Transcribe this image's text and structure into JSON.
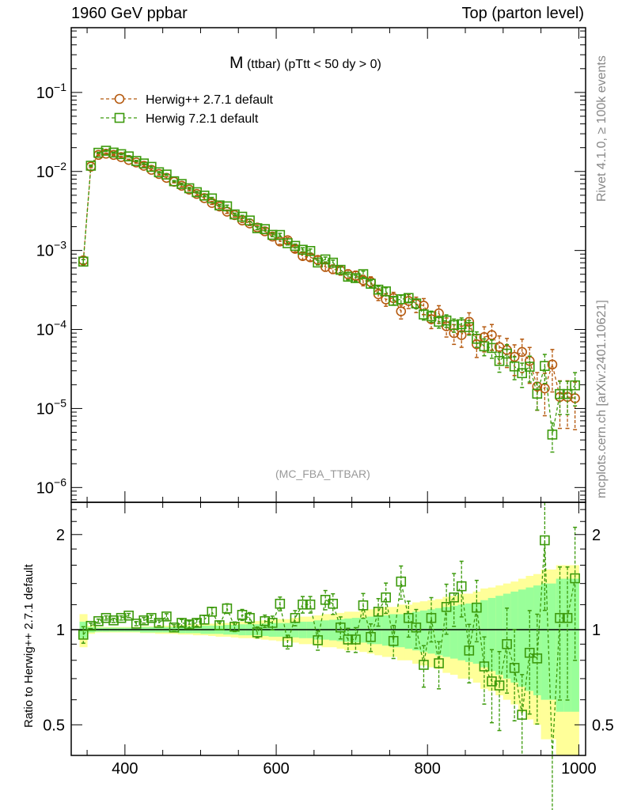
{
  "header": {
    "left": "1960 GeV ppbar",
    "right": "Top (parton level)"
  },
  "side": {
    "rivet": "Rivet 4.1.0, ≥ 100k events",
    "mcplots": "mcplots.cern.ch [arXiv:2401.10621]"
  },
  "chart_data": {
    "type": "line",
    "title_main": "M",
    "title_rest": "(ttbar) (pTtt < 50 dy > 0)",
    "analysis": "(MC_FBA_TTBAR)",
    "xlabel": "",
    "ylabel_ratio": "Ratio to Herwig++ 2.7.1 default",
    "xlim": [
      329,
      1009
    ],
    "ylim": [
      6.5e-07,
      0.66
    ],
    "yscale": "log",
    "ratio_ylim": [
      0.4,
      2.53
    ],
    "ratio_yscale": "log",
    "x_ticks": [
      400,
      600,
      800,
      1000
    ],
    "y_ticks": [
      {
        "v": 0.1,
        "base": "10",
        "exp": "−1"
      },
      {
        "v": 0.01,
        "base": "10",
        "exp": "−2"
      },
      {
        "v": 0.001,
        "base": "10",
        "exp": "−3"
      },
      {
        "v": 0.0001,
        "base": "10",
        "exp": "−4"
      },
      {
        "v": 1e-05,
        "base": "10",
        "exp": "−5"
      },
      {
        "v": 1e-06,
        "base": "10",
        "exp": "−6"
      }
    ],
    "ratio_ticks": [
      {
        "v": 0.5,
        "label": "0.5"
      },
      {
        "v": 1,
        "label": "1"
      },
      {
        "v": 2,
        "label": "2"
      }
    ],
    "legend": {
      "position": "top-left"
    },
    "colors": {
      "herwigpp": "#b5590e",
      "herwig7": "#3c9a0c",
      "band_outer": "#ffff99",
      "band_inner": "#99ff99"
    },
    "x": [
      345,
      355,
      365,
      375,
      385,
      395,
      405,
      415,
      425,
      435,
      445,
      455,
      465,
      475,
      485,
      495,
      505,
      515,
      525,
      535,
      545,
      555,
      565,
      575,
      585,
      595,
      605,
      615,
      625,
      635,
      645,
      655,
      665,
      675,
      685,
      695,
      705,
      715,
      725,
      735,
      745,
      755,
      765,
      775,
      785,
      795,
      805,
      815,
      825,
      835,
      845,
      855,
      865,
      875,
      885,
      895,
      905,
      915,
      925,
      935,
      945,
      955,
      965,
      975,
      985,
      995
    ],
    "series": [
      {
        "name": "Herwig++ 2.7.1 default",
        "values": [
          0.00075,
          0.0115,
          0.0162,
          0.0168,
          0.0162,
          0.0152,
          0.014,
          0.013,
          0.0118,
          0.0105,
          0.0093,
          0.0083,
          0.0074,
          0.0066,
          0.0059,
          0.0052,
          0.0046,
          0.004,
          0.0036,
          0.0031,
          0.0028,
          0.0024,
          0.0022,
          0.00195,
          0.00175,
          0.0015,
          0.0013,
          0.00135,
          0.00105,
          0.00085,
          0.00082,
          0.00076,
          0.00062,
          0.00058,
          0.00056,
          0.0005,
          0.00048,
          0.00042,
          0.0004,
          0.00028,
          0.00024,
          0.00025,
          0.00017,
          0.00023,
          0.00021,
          0.0002,
          0.000135,
          0.00016,
          0.00011,
          9e-05,
          8.5e-05,
          0.000125,
          6.5e-05,
          8e-05,
          8.5e-05,
          6e-05,
          5.5e-05,
          4.5e-05,
          5.2e-05,
          4e-05,
          1.9e-05,
          1.8e-05,
          3.6e-05,
          1.4e-05,
          1.4e-05,
          1.35e-05
        ],
        "rel_err": [
          0.12,
          0.03,
          0.02,
          0.02,
          0.02,
          0.02,
          0.02,
          0.02,
          0.025,
          0.025,
          0.03,
          0.03,
          0.03,
          0.035,
          0.035,
          0.04,
          0.04,
          0.045,
          0.05,
          0.05,
          0.055,
          0.06,
          0.06,
          0.065,
          0.07,
          0.075,
          0.08,
          0.08,
          0.09,
          0.1,
          0.1,
          0.11,
          0.12,
          0.12,
          0.13,
          0.14,
          0.14,
          0.15,
          0.16,
          0.17,
          0.18,
          0.18,
          0.2,
          0.2,
          0.22,
          0.23,
          0.24,
          0.25,
          0.27,
          0.28,
          0.3,
          0.3,
          0.32,
          0.35,
          0.36,
          0.38,
          0.4,
          0.42,
          0.45,
          0.48,
          0.5,
          0.55,
          0.55,
          0.6,
          0.6,
          0.6
        ]
      },
      {
        "name": "Herwig 7.2.1 default",
        "ratio": [
          0.964,
          1.028,
          1.064,
          1.089,
          1.07,
          1.089,
          1.108,
          1.045,
          1.07,
          1.089,
          1.051,
          1.101,
          1.016,
          1.051,
          1.039,
          1.051,
          1.076,
          1.14,
          1.033,
          1.167,
          1.022,
          1.114,
          1.089,
          0.981,
          1.064,
          1.051,
          1.208,
          0.915,
          1.089,
          1.201,
          1.201,
          0.926,
          1.243,
          1.208,
          1.016,
          0.931,
          0.931,
          1.194,
          0.948,
          1.14,
          1.265,
          0.921,
          1.42,
          1.089,
          1.016,
          0.774,
          1.089,
          0.783,
          1.18,
          1.265,
          1.372,
          0.859,
          1.174,
          0.765,
          0.686,
          0.666,
          0.9,
          0.757,
          0.538,
          0.845,
          0.811,
          1.918,
          0.13,
          1.089,
          1.089,
          1.454
        ],
        "rel_err": [
          0.06,
          0.02,
          0.015,
          0.015,
          0.015,
          0.015,
          0.015,
          0.015,
          0.02,
          0.02,
          0.02,
          0.02,
          0.02,
          0.025,
          0.025,
          0.025,
          0.03,
          0.03,
          0.03,
          0.035,
          0.035,
          0.04,
          0.04,
          0.04,
          0.045,
          0.05,
          0.05,
          0.05,
          0.055,
          0.06,
          0.06,
          0.07,
          0.07,
          0.075,
          0.08,
          0.085,
          0.09,
          0.09,
          0.1,
          0.1,
          0.11,
          0.12,
          0.12,
          0.13,
          0.14,
          0.15,
          0.16,
          0.17,
          0.18,
          0.19,
          0.2,
          0.21,
          0.22,
          0.24,
          0.26,
          0.28,
          0.3,
          0.32,
          0.34,
          0.36,
          0.38,
          0.4,
          0.4,
          0.45,
          0.45,
          0.45
        ]
      }
    ]
  }
}
